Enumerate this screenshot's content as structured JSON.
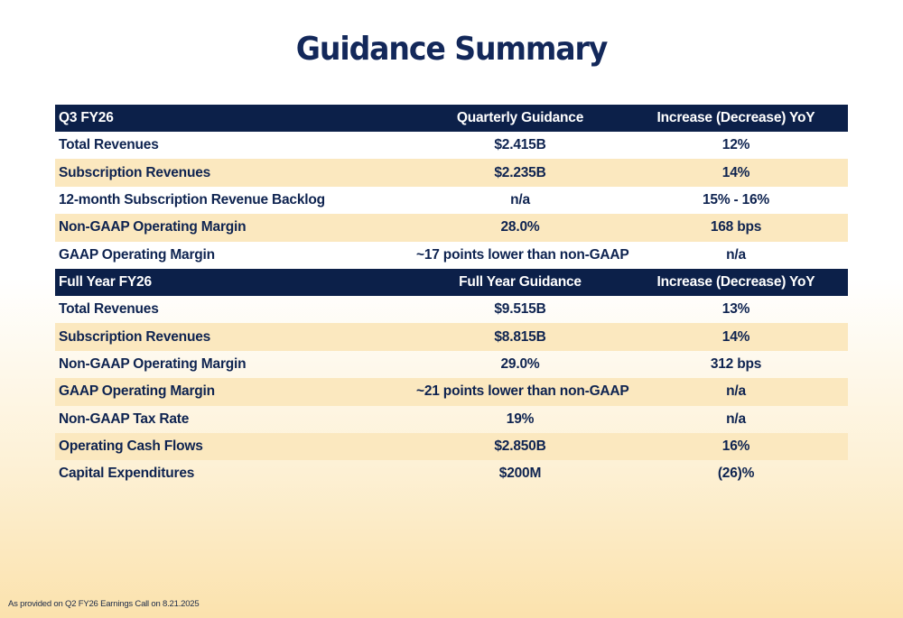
{
  "title": "Guidance Summary",
  "q3": {
    "header": [
      "Q3 FY26",
      "Quarterly Guidance",
      "Increase (Decrease) YoY"
    ],
    "rows": [
      [
        "Total Revenues",
        "$2.415B",
        "12%"
      ],
      [
        "Subscription Revenues",
        "$2.235B",
        "14%"
      ],
      [
        "12-month Subscription Revenue Backlog",
        "n/a",
        "15% - 16%"
      ],
      [
        "Non-GAAP Operating Margin",
        "28.0%",
        "168 bps"
      ],
      [
        "GAAP Operating Margin",
        "~17 points lower than non-GAAP",
        "n/a"
      ]
    ]
  },
  "fy": {
    "header": [
      "Full Year FY26",
      "Full Year Guidance",
      "Increase (Decrease) YoY"
    ],
    "rows": [
      [
        "Total Revenues",
        "$9.515B",
        "13%"
      ],
      [
        "Subscription Revenues",
        "$8.815B",
        "14%"
      ],
      [
        "Non-GAAP Operating Margin",
        "29.0%",
        "312 bps"
      ],
      [
        "GAAP Operating Margin",
        "~21 points lower than non-GAAP",
        "n/a"
      ],
      [
        "Non-GAAP Tax Rate",
        "19%",
        "n/a"
      ],
      [
        "Operating Cash Flows",
        "$2.850B",
        "16%"
      ],
      [
        "Capital Expenditures",
        "$200M",
        "(26)%"
      ]
    ]
  },
  "footnote": "As provided on Q2 FY26 Earnings Call on 8.21.2025",
  "colors": {
    "navy": "#0c2049",
    "band": "#fbe8bf",
    "text": "#0e2350"
  }
}
